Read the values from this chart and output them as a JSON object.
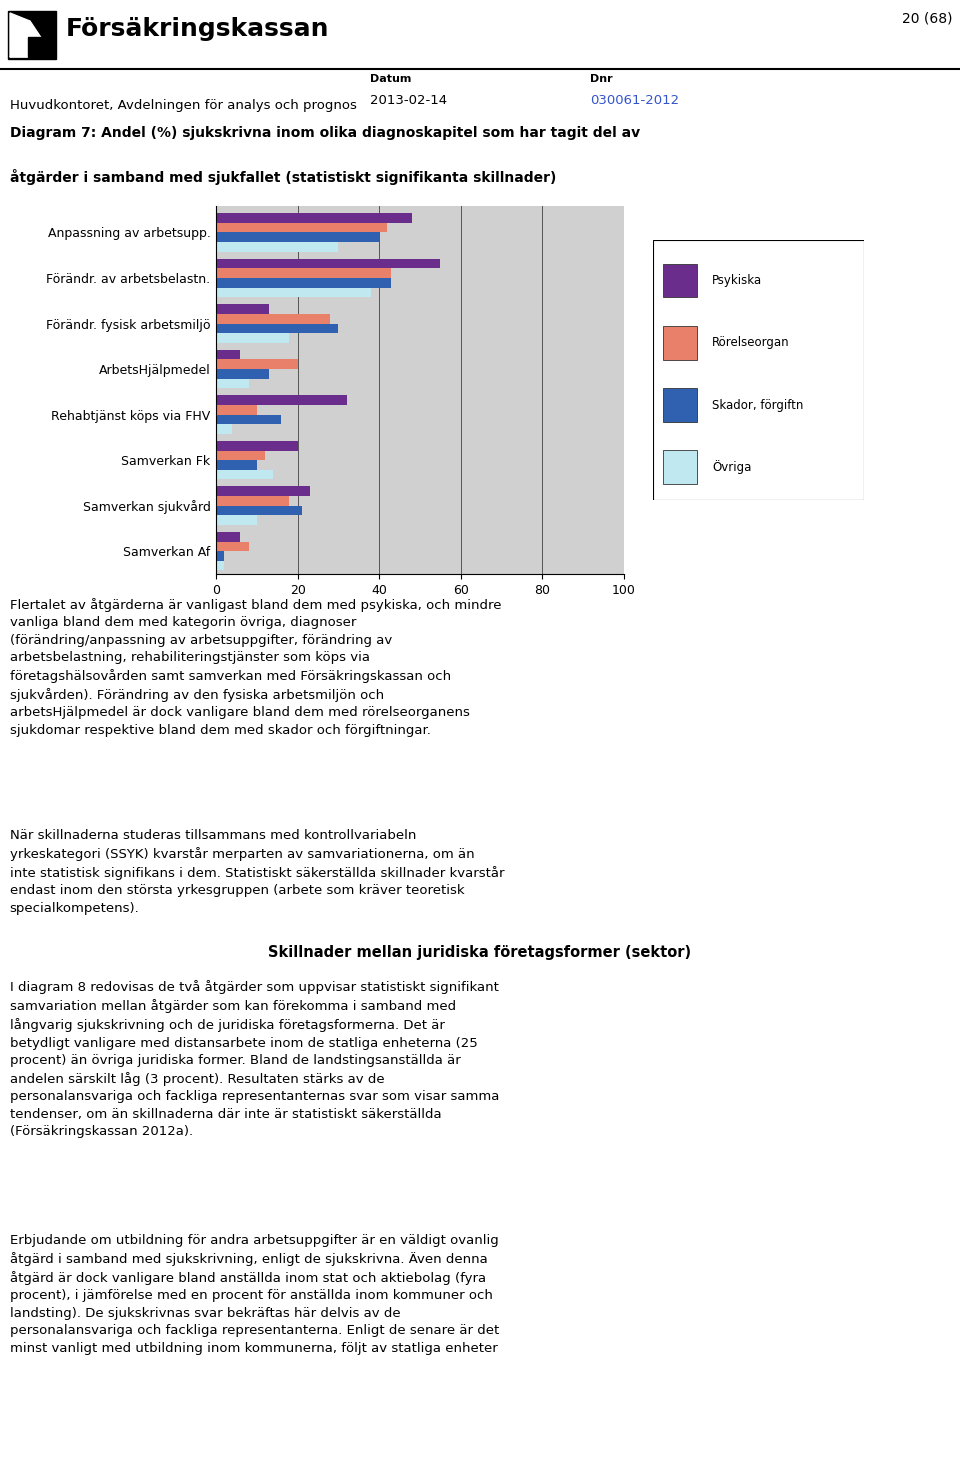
{
  "title_line1": "Diagram 7: Andel (%) sjukskrivna inom olika diagnoskapitel som har tagit del av",
  "title_line2": "åtgärder i samband med sjukfallet (statistiskt signifikanta skillnader)",
  "categories": [
    "Anpassning av arbetsupp.",
    "Förändr. av arbetsbelastn.",
    "Förändr. fysisk arbetsmiljö",
    "ArbetsHjälpmedel",
    "Rehabtjänst köps via FHV",
    "Samverkan Fk",
    "Samverkan sjukvård",
    "Samverkan Af"
  ],
  "series": {
    "Psykiska": [
      48,
      55,
      13,
      6,
      32,
      20,
      23,
      6
    ],
    "Rörelseorgan": [
      42,
      43,
      28,
      20,
      10,
      12,
      18,
      8
    ],
    "Skador, förgiftn": [
      40,
      43,
      30,
      13,
      16,
      10,
      21,
      2
    ],
    "Övriga": [
      30,
      38,
      18,
      8,
      4,
      14,
      10,
      2
    ]
  },
  "colors": {
    "Psykiska": "#6B2D8B",
    "Rörelseorgan": "#E8806A",
    "Skador, förgiftn": "#3060B0",
    "Övriga": "#C0E8F0"
  },
  "xlim": [
    0,
    100
  ],
  "xticks": [
    0,
    20,
    40,
    60,
    80,
    100
  ],
  "chart_bg": "#D0D0D0",
  "header_org": "Huvudkontoret, Avdelningen för analys och prognos",
  "header_datum_label": "Datum",
  "header_datum": "2013-02-14",
  "header_dnr_label": "Dnr",
  "header_dnr": "030061-2012",
  "header_page": "20 (68)",
  "body_text": "Flertalet av åtgärderna är vanligast bland dem med psykiska, och mindre\nvanliga bland dem med kategorin övriga, diagnoser\n(förändring/anpassning av arbetsuppgifter, förändring av\narbetsbelastning, rehabiliteringstjänster som köps via\nföretagshälsovården samt samverkan med Försäkringskassan och\nsjukvården). Förändring av den fysiska arbetsmiljön och\narbetsHjälpmedel är dock vanligare bland dem med rörelseorganens\nsjukdomar respektive bland dem med skador och förgiftningar.",
  "body_text2": "När skillnaderna studeras tillsammans med kontrollvariabeln\nyrkeskategori (SSYK) kvarstår merparten av samvariationerna, om än\ninte statistisk signifikans i dem. Statistiskt säkerställda skillnader kvarstår\nendast inom den största yrkesgruppen (arbete som kräver teoretisk\nspecialkompetens).",
  "section_title": "Skillnader mellan juridiska företagsformer (sektor)",
  "body_text3": "I diagram 8 redovisas de två åtgärder som uppvisar statistiskt signifikant\nsamvariation mellan åtgärder som kan förekomma i samband med\nlångvarig sjukskrivning och de juridiska företagsformerna. Det är\nbetydligt vanligare med distansarbete inom de statliga enheterna (25\nprocent) än övriga juridiska former. Bland de landstingsanställda är\nandelen särskilt låg (3 procent). Resultaten stärks av de\npersonalansvariga och fackliga representanternas svar som visar samma\ntendenser, om än skillnaderna där inte är statistiskt säkerställda\n(Försäkringskassan 2012a).",
  "body_text4": "Erbjudande om utbildning för andra arbetsuppgifter är en väldigt ovanlig\nåtgärd i samband med sjukskrivning, enligt de sjukskrivna. Även denna\nåtgärd är dock vanligare bland anställda inom stat och aktiebolag (fyra\nprocent), i jämförelse med en procent för anställda inom kommuner och\nlandsting). De sjukskrivnas svar bekräftas här delvis av de\npersonalansvariga och fackliga representanterna. Enligt de senare är det\nminst vanligt med utbildning inom kommunerna, följt av statliga enheter"
}
